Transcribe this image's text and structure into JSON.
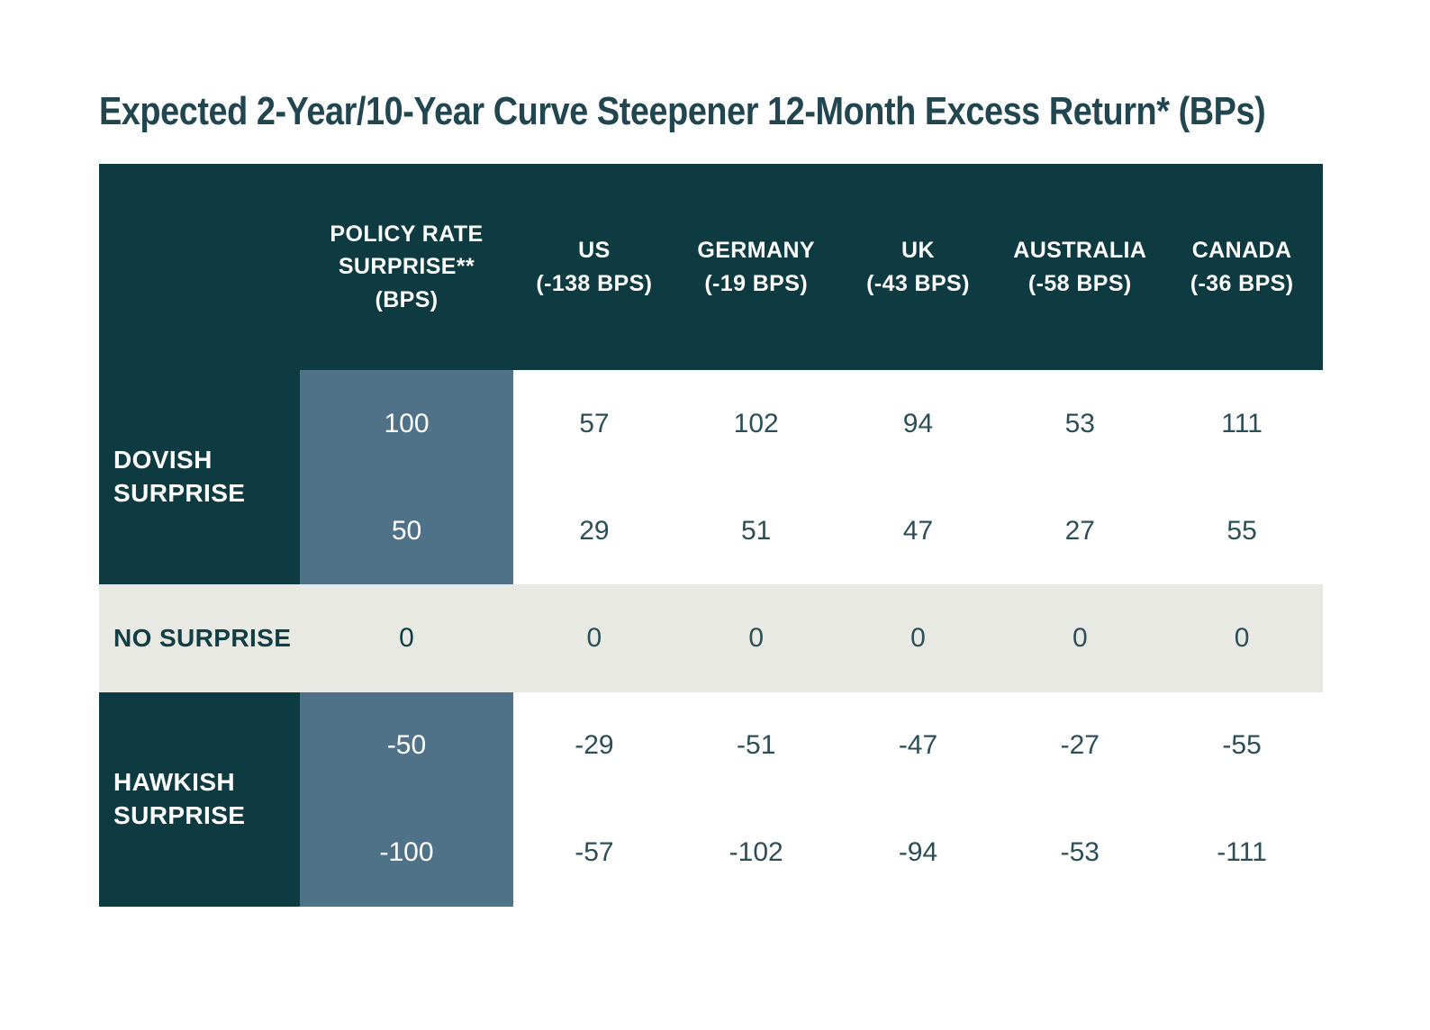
{
  "title": "Expected 2-Year/10-Year Curve Steepener 12-Month Excess Return* (BPs)",
  "colors": {
    "header_teal": "#0e3b41",
    "policy_blue": "#507289",
    "neutral_band": "#e9e9e4",
    "value_text": "#2c4e57",
    "title_text": "#21464f",
    "header_text": "#ffffff"
  },
  "table": {
    "policy_header": {
      "line1": "POLICY RATE",
      "line2": "SURPRISE**",
      "line3": "(BPS)"
    },
    "columns": [
      {
        "name": "US",
        "shock": "(-138 BPS)"
      },
      {
        "name": "GERMANY",
        "shock": "(-19 BPS)"
      },
      {
        "name": "UK",
        "shock": "(-43 BPS)"
      },
      {
        "name": "AUSTRALIA",
        "shock": "(-58 BPS)"
      },
      {
        "name": "CANADA",
        "shock": "(-36 BPS)"
      }
    ],
    "row_groups": [
      {
        "lines": [
          "DOVISH",
          "SURPRISE"
        ]
      },
      {
        "lines": [
          "NO SURPRISE"
        ]
      },
      {
        "lines": [
          "HAWKISH",
          "SURPRISE"
        ]
      }
    ],
    "rows": [
      {
        "policy": "100",
        "values": [
          "57",
          "102",
          "94",
          "53",
          "111"
        ]
      },
      {
        "policy": "50",
        "values": [
          "29",
          "51",
          "47",
          "27",
          "55"
        ]
      },
      {
        "policy": "0",
        "values": [
          "0",
          "0",
          "0",
          "0",
          "0"
        ]
      },
      {
        "policy": "-50",
        "values": [
          "-29",
          "-51",
          "-47",
          "-27",
          "-55"
        ]
      },
      {
        "policy": "-100",
        "values": [
          "-57",
          "-102",
          "-94",
          "-53",
          "-111"
        ]
      }
    ]
  },
  "chart_data": {
    "type": "table",
    "title": "Expected 2-Year/10-Year Curve Steepener 12-Month Excess Return* (BPs)",
    "row_axis_label": "Policy Rate Surprise** (BPS)",
    "columns": [
      "US (-138 BPS)",
      "GERMANY (-19 BPS)",
      "UK (-43 BPS)",
      "AUSTRALIA (-58 BPS)",
      "CANADA (-36 BPS)"
    ],
    "scenario_groups": [
      "Dovish Surprise",
      "No Surprise",
      "Hawkish Surprise"
    ],
    "policy_rate_surprise_bps": [
      100,
      50,
      0,
      -50,
      -100
    ],
    "values": [
      [
        57,
        102,
        94,
        53,
        111
      ],
      [
        29,
        51,
        47,
        27,
        55
      ],
      [
        0,
        0,
        0,
        0,
        0
      ],
      [
        -29,
        -51,
        -47,
        -27,
        -55
      ],
      [
        -57,
        -102,
        -94,
        -53,
        -111
      ]
    ]
  }
}
